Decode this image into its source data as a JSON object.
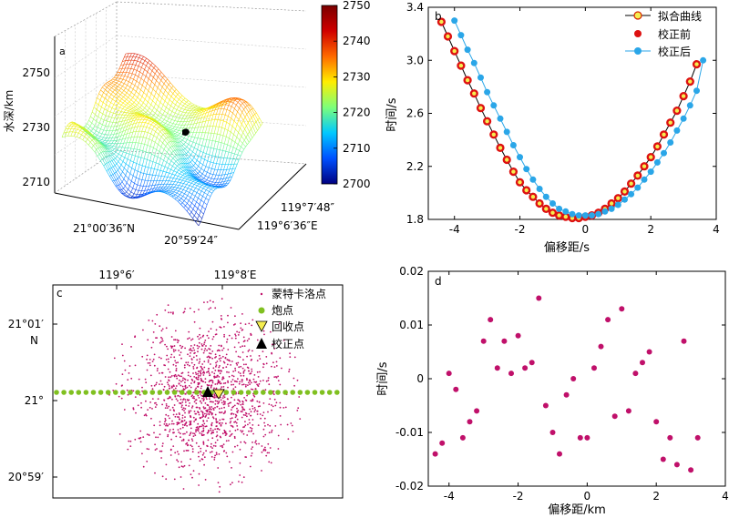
{
  "panel_a": {
    "label": "a",
    "zlabel": "水深/km",
    "zticks": [
      "2750",
      "2730",
      "2710"
    ],
    "xtick": "21°00′36″N",
    "ytick": "20°59′24″",
    "etick1": "119°7′48″",
    "etick2": "119°6′36″E",
    "colorbar": {
      "ticks": [
        "2750",
        "2740",
        "2730",
        "2720",
        "2710",
        "2700"
      ],
      "colors": [
        "#000080",
        "#0050ff",
        "#00c8ff",
        "#7cff7a",
        "#ffee00",
        "#ff6a00",
        "#d00000",
        "#7a0000"
      ]
    }
  },
  "chart_data": [
    {
      "type": "scatter",
      "label": "b",
      "xlabel": "偏移距/s",
      "ylabel": "时间/s",
      "xlim": [
        -4.8,
        4.0
      ],
      "ylim": [
        1.8,
        3.4
      ],
      "xticks": [
        "-4",
        "-2",
        "0",
        "2",
        "4"
      ],
      "yticks": [
        "1.8",
        "2.2",
        "2.6",
        "3.0",
        "3.4"
      ],
      "legend_position": "top-right",
      "series": [
        {
          "name": "拟合曲线",
          "color": "#000000"
        },
        {
          "name": "校正前",
          "color": "#dd1111",
          "x": [
            -4.4,
            -4.2,
            -4.0,
            -3.8,
            -3.6,
            -3.4,
            -3.2,
            -3.0,
            -2.8,
            -2.6,
            -2.4,
            -2.2,
            -2.0,
            -1.8,
            -1.6,
            -1.4,
            -1.2,
            -1.0,
            -0.8,
            -0.6,
            -0.4,
            -0.2,
            0.0,
            0.2,
            0.4,
            0.6,
            0.8,
            1.0,
            1.2,
            1.4,
            1.6,
            1.8,
            2.0,
            2.2,
            2.4,
            2.6,
            2.8,
            3.0,
            3.2,
            3.4
          ],
          "y": [
            3.29,
            3.18,
            3.07,
            2.96,
            2.85,
            2.75,
            2.64,
            2.54,
            2.44,
            2.34,
            2.25,
            2.16,
            2.08,
            2.02,
            1.97,
            1.92,
            1.88,
            1.85,
            1.83,
            1.82,
            1.81,
            1.81,
            1.82,
            1.83,
            1.85,
            1.88,
            1.92,
            1.96,
            2.01,
            2.07,
            2.13,
            2.2,
            2.27,
            2.35,
            2.44,
            2.53,
            2.62,
            2.73,
            2.84,
            2.97
          ]
        },
        {
          "name": "校正后",
          "color": "#2aa6e8",
          "x": [
            -4.0,
            -3.8,
            -3.6,
            -3.4,
            -3.2,
            -3.0,
            -2.8,
            -2.6,
            -2.4,
            -2.2,
            -2.0,
            -1.8,
            -1.6,
            -1.4,
            -1.2,
            -1.0,
            -0.8,
            -0.6,
            -0.4,
            -0.2,
            0.0,
            0.2,
            0.4,
            0.6,
            0.8,
            1.0,
            1.2,
            1.4,
            1.6,
            1.8,
            2.0,
            2.2,
            2.4,
            2.6,
            2.8,
            3.0,
            3.2,
            3.4,
            3.6
          ],
          "y": [
            3.3,
            3.19,
            3.08,
            2.98,
            2.87,
            2.76,
            2.66,
            2.56,
            2.46,
            2.36,
            2.27,
            2.18,
            2.1,
            2.03,
            1.97,
            1.92,
            1.88,
            1.86,
            1.84,
            1.83,
            1.83,
            1.83,
            1.84,
            1.86,
            1.88,
            1.91,
            1.95,
            1.99,
            2.04,
            2.1,
            2.16,
            2.23,
            2.3,
            2.38,
            2.47,
            2.56,
            2.66,
            2.77,
            3.0
          ]
        }
      ]
    },
    {
      "type": "scatter",
      "label": "c",
      "top_ticks": [
        "119°6′",
        "119°8′E"
      ],
      "left_ticks": [
        "21°01′",
        "N",
        "21°",
        "20°59′"
      ],
      "legend_position": "top-right",
      "series": [
        {
          "name": "蒙特卡洛点",
          "color": "#c0106a"
        },
        {
          "name": "炮点",
          "color": "#80c020"
        },
        {
          "name": "回收点",
          "color": "#f5ee50"
        },
        {
          "name": "校正点",
          "color": "#000000"
        }
      ]
    },
    {
      "type": "scatter",
      "label": "d",
      "xlabel": "偏移距/km",
      "ylabel": "时间/s",
      "xlim": [
        -4.6,
        4.0
      ],
      "ylim": [
        -0.02,
        0.02
      ],
      "xticks": [
        "-4",
        "-2",
        "0",
        "2",
        "4"
      ],
      "yticks": [
        "0.02",
        "0.01",
        "0",
        "-0.01",
        "-0.02"
      ],
      "series": [
        {
          "name": "",
          "color": "#c0106a",
          "x": [
            -4.4,
            -4.2,
            -4.0,
            -3.8,
            -3.6,
            -3.4,
            -3.2,
            -3.0,
            -2.8,
            -2.6,
            -2.4,
            -2.2,
            -2.0,
            -1.8,
            -1.6,
            -1.4,
            -1.2,
            -1.0,
            -0.8,
            -0.6,
            -0.4,
            -0.2,
            0.0,
            0.2,
            0.4,
            0.6,
            0.8,
            1.0,
            1.2,
            1.4,
            1.6,
            1.8,
            2.0,
            2.2,
            2.4,
            2.6,
            2.8,
            3.0,
            3.2
          ],
          "y": [
            -0.014,
            -0.012,
            0.001,
            -0.002,
            -0.011,
            -0.008,
            -0.006,
            0.007,
            0.011,
            0.002,
            0.007,
            0.001,
            0.008,
            0.002,
            0.003,
            0.015,
            -0.005,
            -0.01,
            -0.014,
            -0.003,
            0.0,
            -0.011,
            -0.011,
            0.002,
            0.006,
            0.011,
            -0.007,
            0.013,
            -0.006,
            0.001,
            0.003,
            0.005,
            -0.008,
            -0.015,
            -0.011,
            -0.016,
            0.007,
            -0.017,
            -0.011
          ]
        }
      ]
    }
  ]
}
